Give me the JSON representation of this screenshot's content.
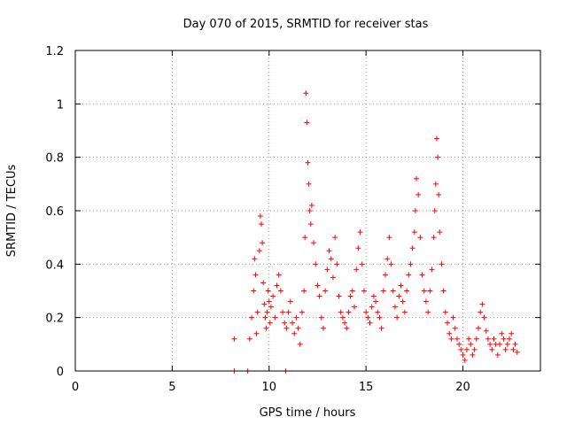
{
  "chart_data": {
    "type": "scatter",
    "title": "Day 070 of 2015, SRMTID for receiver stas",
    "xlabel": "GPS time / hours",
    "ylabel": "SRMTID / TECUs",
    "xlim": [
      0,
      24
    ],
    "ylim": [
      0,
      1.2
    ],
    "x_ticks": [
      0,
      5,
      10,
      15,
      20
    ],
    "x_tick_labels": [
      "0",
      "5",
      "10",
      "15",
      "20"
    ],
    "y_ticks": [
      0,
      0.2,
      0.4,
      0.6,
      0.8,
      1.0,
      1.2
    ],
    "y_tick_labels": [
      "0",
      "0.2",
      "0.4",
      "0.6",
      "0.8",
      "1",
      "1.2"
    ],
    "grid": true,
    "marker": "plus",
    "color": "#ff0000",
    "series": [
      {
        "name": "SRMTID",
        "x": [
          8.2,
          8.2,
          8.9,
          9.0,
          9.1,
          9.2,
          9.25,
          9.3,
          9.35,
          9.4,
          9.5,
          9.55,
          9.6,
          9.65,
          9.7,
          9.75,
          9.8,
          9.85,
          9.9,
          9.95,
          10.0,
          10.05,
          10.1,
          10.2,
          10.3,
          10.4,
          10.5,
          10.6,
          10.7,
          10.8,
          10.85,
          10.9,
          11.0,
          11.1,
          11.2,
          11.3,
          11.4,
          11.5,
          11.6,
          11.7,
          11.8,
          11.85,
          11.9,
          11.95,
          12.0,
          12.05,
          12.1,
          12.15,
          12.2,
          12.3,
          12.4,
          12.5,
          12.6,
          12.7,
          12.8,
          12.9,
          13.0,
          13.1,
          13.2,
          13.3,
          13.4,
          13.5,
          13.6,
          13.7,
          13.8,
          13.9,
          14.0,
          14.1,
          14.2,
          14.3,
          14.4,
          14.5,
          14.6,
          14.7,
          14.8,
          14.9,
          15.0,
          15.1,
          15.2,
          15.3,
          15.4,
          15.5,
          15.6,
          15.7,
          15.8,
          15.9,
          16.0,
          16.1,
          16.2,
          16.3,
          16.4,
          16.5,
          16.6,
          16.7,
          16.8,
          16.9,
          17.0,
          17.1,
          17.2,
          17.3,
          17.4,
          17.5,
          17.55,
          17.6,
          17.7,
          17.8,
          17.9,
          18.0,
          18.1,
          18.2,
          18.3,
          18.4,
          18.5,
          18.55,
          18.6,
          18.65,
          18.7,
          18.75,
          18.8,
          18.9,
          19.0,
          19.1,
          19.2,
          19.3,
          19.4,
          19.5,
          19.6,
          19.7,
          19.8,
          19.9,
          20.0,
          20.1,
          20.2,
          20.3,
          20.4,
          20.5,
          20.6,
          20.7,
          20.8,
          20.9,
          21.0,
          21.1,
          21.2,
          21.3,
          21.4,
          21.5,
          21.6,
          21.7,
          21.8,
          21.9,
          22.0,
          22.1,
          22.2,
          22.3,
          22.4,
          22.5,
          22.6,
          22.7,
          22.8
        ],
        "y": [
          0.12,
          0.0,
          0.0,
          0.12,
          0.2,
          0.3,
          0.42,
          0.36,
          0.14,
          0.22,
          0.45,
          0.58,
          0.55,
          0.48,
          0.33,
          0.25,
          0.2,
          0.16,
          0.22,
          0.3,
          0.26,
          0.18,
          0.24,
          0.28,
          0.2,
          0.32,
          0.36,
          0.3,
          0.22,
          0.18,
          0.0,
          0.16,
          0.22,
          0.26,
          0.18,
          0.14,
          0.2,
          0.16,
          0.1,
          0.22,
          0.3,
          0.5,
          1.04,
          0.93,
          0.78,
          0.7,
          0.6,
          0.55,
          0.62,
          0.48,
          0.4,
          0.32,
          0.28,
          0.2,
          0.16,
          0.3,
          0.38,
          0.45,
          0.42,
          0.35,
          0.5,
          0.4,
          0.28,
          0.22,
          0.2,
          0.18,
          0.16,
          0.22,
          0.28,
          0.3,
          0.24,
          0.38,
          0.46,
          0.52,
          0.4,
          0.3,
          0.22,
          0.2,
          0.18,
          0.24,
          0.28,
          0.26,
          0.22,
          0.2,
          0.16,
          0.3,
          0.36,
          0.42,
          0.5,
          0.4,
          0.3,
          0.24,
          0.2,
          0.28,
          0.32,
          0.26,
          0.22,
          0.3,
          0.36,
          0.4,
          0.46,
          0.52,
          0.6,
          0.72,
          0.66,
          0.5,
          0.36,
          0.3,
          0.26,
          0.22,
          0.3,
          0.38,
          0.5,
          0.6,
          0.7,
          0.87,
          0.8,
          0.66,
          0.52,
          0.4,
          0.3,
          0.22,
          0.18,
          0.14,
          0.12,
          0.2,
          0.16,
          0.12,
          0.1,
          0.08,
          0.06,
          0.04,
          0.08,
          0.12,
          0.1,
          0.06,
          0.08,
          0.12,
          0.16,
          0.22,
          0.25,
          0.2,
          0.15,
          0.12,
          0.1,
          0.08,
          0.12,
          0.1,
          0.06,
          0.1,
          0.14,
          0.12,
          0.08,
          0.1,
          0.12,
          0.14,
          0.08,
          0.1,
          0.07
        ]
      }
    ]
  }
}
